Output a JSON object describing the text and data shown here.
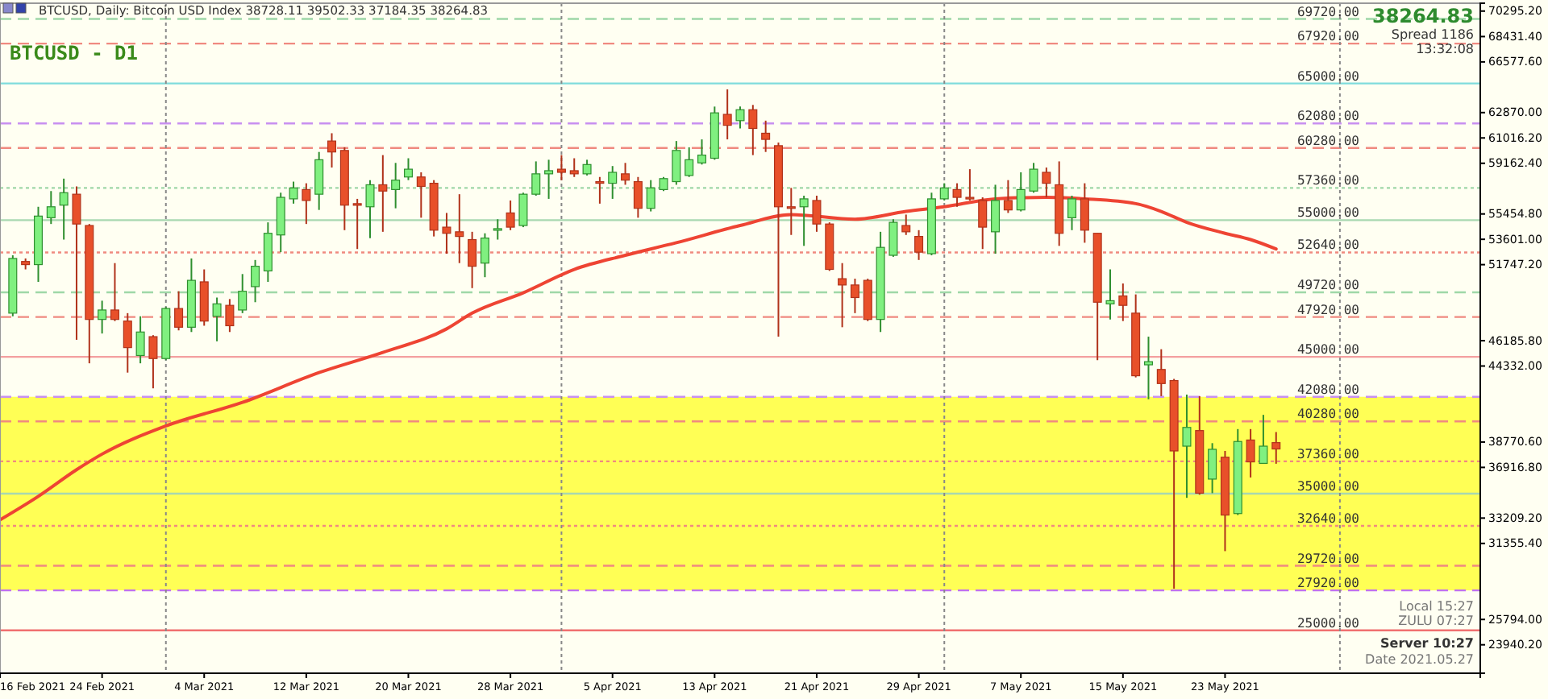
{
  "chart_data": {
    "type": "candlestick",
    "title": "BTCUSD, Daily:  Bitcoin USD Index  38728.11 39502.33 37184.35 38264.83",
    "subtitle": "BTCUSD - D1",
    "x": [
      "2021-02-17",
      "2021-02-18",
      "2021-02-19",
      "2021-02-20",
      "2021-02-21",
      "2021-02-22",
      "2021-02-23",
      "2021-02-24",
      "2021-02-25",
      "2021-02-26",
      "2021-02-27",
      "2021-02-28",
      "2021-03-01",
      "2021-03-02",
      "2021-03-03",
      "2021-03-04",
      "2021-03-05",
      "2021-03-06",
      "2021-03-07",
      "2021-03-08",
      "2021-03-09",
      "2021-03-10",
      "2021-03-11",
      "2021-03-12",
      "2021-03-13",
      "2021-03-14",
      "2021-03-15",
      "2021-03-16",
      "2021-03-17",
      "2021-03-18",
      "2021-03-19",
      "2021-03-20",
      "2021-03-21",
      "2021-03-22",
      "2021-03-23",
      "2021-03-24",
      "2021-03-25",
      "2021-03-26",
      "2021-03-27",
      "2021-03-28",
      "2021-03-29",
      "2021-03-30",
      "2021-03-31",
      "2021-04-01",
      "2021-04-02",
      "2021-04-03",
      "2021-04-04",
      "2021-04-05",
      "2021-04-06",
      "2021-04-07",
      "2021-04-08",
      "2021-04-09",
      "2021-04-10",
      "2021-04-11",
      "2021-04-12",
      "2021-04-13",
      "2021-04-14",
      "2021-04-15",
      "2021-04-16",
      "2021-04-17",
      "2021-04-18",
      "2021-04-19",
      "2021-04-20",
      "2021-04-21",
      "2021-04-22",
      "2021-04-23",
      "2021-04-24",
      "2021-04-25",
      "2021-04-26",
      "2021-04-27",
      "2021-04-28",
      "2021-04-29",
      "2021-04-30",
      "2021-05-01",
      "2021-05-02",
      "2021-05-03",
      "2021-05-04",
      "2021-05-05",
      "2021-05-06",
      "2021-05-07",
      "2021-05-08",
      "2021-05-09",
      "2021-05-10",
      "2021-05-11",
      "2021-05-12",
      "2021-05-13",
      "2021-05-14",
      "2021-05-15",
      "2021-05-16",
      "2021-05-17",
      "2021-05-18",
      "2021-05-19",
      "2021-05-20",
      "2021-05-21",
      "2021-05-22",
      "2021-05-23",
      "2021-05-24",
      "2021-05-25",
      "2021-05-26",
      "2021-05-27"
    ],
    "ohlc": [
      [
        48200,
        52430,
        47970,
        52200
      ],
      [
        51980,
        52200,
        51400,
        51750
      ],
      [
        51750,
        55980,
        50490,
        55300
      ],
      [
        55180,
        57130,
        54720,
        55980
      ],
      [
        56100,
        58040,
        53580,
        57010
      ],
      [
        56900,
        57470,
        46250,
        54720
      ],
      [
        54610,
        54720,
        44530,
        47740
      ],
      [
        47740,
        49110,
        46710,
        48430
      ],
      [
        48430,
        51860,
        47620,
        47740
      ],
      [
        47620,
        48200,
        43850,
        45680
      ],
      [
        45100,
        47970,
        44530,
        46820
      ],
      [
        46480,
        46590,
        42700,
        44880
      ],
      [
        44880,
        48650,
        44760,
        48540
      ],
      [
        48540,
        49800,
        46940,
        47170
      ],
      [
        47170,
        52200,
        46820,
        50600
      ],
      [
        50490,
        51400,
        47280,
        47620
      ],
      [
        47970,
        49340,
        46140,
        48880
      ],
      [
        48770,
        49230,
        46820,
        47280
      ],
      [
        48430,
        51060,
        48200,
        49800
      ],
      [
        50140,
        52090,
        49000,
        51630
      ],
      [
        51290,
        54840,
        50490,
        54040
      ],
      [
        53920,
        57010,
        52660,
        56670
      ],
      [
        56560,
        57820,
        56210,
        57360
      ],
      [
        57240,
        57700,
        54720,
        56440
      ],
      [
        56900,
        59990,
        55750,
        59420
      ],
      [
        60790,
        61360,
        58850,
        59990
      ],
      [
        60100,
        60330,
        54270,
        56100
      ],
      [
        56210,
        56560,
        52890,
        56100
      ],
      [
        55980,
        57930,
        53690,
        57590
      ],
      [
        57590,
        59760,
        54150,
        57130
      ],
      [
        57240,
        59190,
        55870,
        57930
      ],
      [
        58160,
        59530,
        57930,
        58730
      ],
      [
        58160,
        58500,
        55180,
        57470
      ],
      [
        57700,
        57930,
        53810,
        54270
      ],
      [
        54490,
        55530,
        52550,
        54040
      ],
      [
        54150,
        56900,
        51860,
        53810
      ],
      [
        53580,
        54150,
        50030,
        51630
      ],
      [
        51860,
        54040,
        50830,
        53690
      ],
      [
        54270,
        55070,
        53580,
        54380
      ],
      [
        55530,
        56440,
        54270,
        54490
      ],
      [
        54610,
        57010,
        54490,
        56900
      ],
      [
        56900,
        59300,
        56790,
        58390
      ],
      [
        58390,
        59420,
        56560,
        58620
      ],
      [
        58730,
        59760,
        57930,
        58500
      ],
      [
        58620,
        59530,
        58160,
        58390
      ],
      [
        58390,
        59420,
        58270,
        59070
      ],
      [
        57820,
        58160,
        56210,
        57700
      ],
      [
        57700,
        58960,
        56560,
        58500
      ],
      [
        58390,
        59190,
        57590,
        57930
      ],
      [
        57820,
        58160,
        55180,
        55870
      ],
      [
        55870,
        57930,
        55640,
        57360
      ],
      [
        57240,
        58160,
        57130,
        58040
      ],
      [
        57820,
        60790,
        57590,
        60100
      ],
      [
        58270,
        60330,
        58160,
        59420
      ],
      [
        59190,
        60910,
        59070,
        59760
      ],
      [
        59530,
        63310,
        59420,
        62850
      ],
      [
        62740,
        64570,
        60910,
        61940
      ],
      [
        62280,
        63310,
        61710,
        63080
      ],
      [
        63080,
        63430,
        59760,
        61710
      ],
      [
        61360,
        62280,
        59990,
        60910
      ],
      [
        60450,
        60680,
        46480,
        55980
      ],
      [
        55980,
        57360,
        53920,
        55870
      ],
      [
        55980,
        56790,
        53120,
        56560
      ],
      [
        56440,
        56790,
        54150,
        54720
      ],
      [
        54720,
        54840,
        51290,
        51400
      ],
      [
        50720,
        51860,
        47170,
        50260
      ],
      [
        50260,
        50720,
        48200,
        49340
      ],
      [
        50600,
        50720,
        47620,
        47740
      ],
      [
        47740,
        54150,
        46820,
        53010
      ],
      [
        52430,
        55070,
        52320,
        54840
      ],
      [
        54610,
        55410,
        53920,
        54150
      ],
      [
        53810,
        54270,
        52090,
        52660
      ],
      [
        52550,
        57010,
        52430,
        56560
      ],
      [
        56560,
        57700,
        56440,
        57360
      ],
      [
        57240,
        57700,
        55980,
        56670
      ],
      [
        56670,
        58730,
        56440,
        56560
      ],
      [
        56440,
        56670,
        52890,
        54490
      ],
      [
        54150,
        57590,
        52550,
        56440
      ],
      [
        56440,
        57930,
        55530,
        55750
      ],
      [
        55750,
        58500,
        55640,
        57240
      ],
      [
        57130,
        59190,
        57010,
        58730
      ],
      [
        58500,
        58850,
        56670,
        57700
      ],
      [
        57590,
        59300,
        53120,
        54040
      ],
      [
        55180,
        56790,
        54270,
        56560
      ],
      [
        56560,
        57700,
        53350,
        54270
      ],
      [
        54040,
        54040,
        44760,
        49000
      ],
      [
        48880,
        51400,
        47740,
        49110
      ],
      [
        49460,
        50370,
        47620,
        48770
      ],
      [
        48200,
        49570,
        43500,
        43620
      ],
      [
        44420,
        46480,
        41900,
        44650
      ],
      [
        44080,
        45560,
        42130,
        43050
      ],
      [
        43270,
        43390,
        28050,
        38120
      ],
      [
        38470,
        42240,
        34690,
        39840
      ],
      [
        39610,
        42130,
        34920,
        35030
      ],
      [
        36060,
        38690,
        35030,
        38240
      ],
      [
        37660,
        38120,
        30790,
        33430
      ],
      [
        33540,
        39720,
        33430,
        38810
      ],
      [
        38920,
        39720,
        36180,
        37320
      ],
      [
        37210,
        40760,
        37210,
        38470
      ],
      [
        38728.11,
        39502.33,
        37184.35,
        38264.83
      ]
    ],
    "series": [
      {
        "type": "line",
        "color": "#ee4433",
        "x": [
          "2021-02-16",
          "2021-02-19",
          "2021-02-22",
          "2021-02-24",
          "2021-03-01",
          "2021-03-07",
          "2021-03-13",
          "2021-03-18",
          "2021-03-23",
          "2021-03-25",
          "2021-03-29",
          "2021-04-02",
          "2021-04-06",
          "2021-04-10",
          "2021-04-15",
          "2021-04-19",
          "2021-04-24",
          "2021-04-28",
          "2021-05-01",
          "2021-05-05",
          "2021-05-09",
          "2021-05-12",
          "2021-05-16",
          "2021-05-18",
          "2021-05-20",
          "2021-05-23",
          "2021-05-25",
          "2021-05-27"
        ],
        "values": [
          33080,
          34800,
          36750,
          37890,
          39950,
          41670,
          43850,
          45330,
          47050,
          48200,
          49690,
          51400,
          52430,
          53350,
          54610,
          55410,
          55070,
          55640,
          55980,
          56560,
          56670,
          56560,
          56210,
          55640,
          54840,
          54040,
          53580,
          52890
        ]
      }
    ],
    "xlim": [
      "2021-02-16",
      "2021-06-12"
    ],
    "xticks": [
      {
        "value": "2021-02-16",
        "label": "16 Feb 2021"
      },
      {
        "value": "2021-02-24",
        "label": "24 Feb 2021"
      },
      {
        "value": "2021-03-04",
        "label": "4 Mar 2021"
      },
      {
        "value": "2021-03-12",
        "label": "12 Mar 2021"
      },
      {
        "value": "2021-03-20",
        "label": "20 Mar 2021"
      },
      {
        "value": "2021-03-28",
        "label": "28 Mar 2021"
      },
      {
        "value": "2021-04-05",
        "label": "5 Apr 2021"
      },
      {
        "value": "2021-04-13",
        "label": "13 Apr 2021"
      },
      {
        "value": "2021-04-21",
        "label": "21 Apr 2021"
      },
      {
        "value": "2021-04-29",
        "label": "29 Apr 2021"
      },
      {
        "value": "2021-05-07",
        "label": "7 May 2021"
      },
      {
        "value": "2021-05-15",
        "label": "15 May 2021"
      },
      {
        "value": "2021-05-23",
        "label": "23 May 2021"
      }
    ],
    "ylim": [
      21860,
      70870
    ],
    "yticks": [
      {
        "value": 70295.2,
        "label": "70295.20"
      },
      {
        "value": 68431.4,
        "label": "68431.40"
      },
      {
        "value": 66577.6,
        "label": "66577.60"
      },
      {
        "value": 62870,
        "label": "62870.00"
      },
      {
        "value": 61016.2,
        "label": "61016.20"
      },
      {
        "value": 59162.4,
        "label": "59162.40"
      },
      {
        "value": 55454.8,
        "label": "55454.80"
      },
      {
        "value": 53601,
        "label": "53601.00"
      },
      {
        "value": 51747.2,
        "label": "51747.20"
      },
      {
        "value": 46185.8,
        "label": "46185.80"
      },
      {
        "value": 44332,
        "label": "44332.00"
      },
      {
        "value": 38770.6,
        "label": "38770.60"
      },
      {
        "value": 36916.8,
        "label": "36916.80"
      },
      {
        "value": 33209.2,
        "label": "33209.20"
      },
      {
        "value": 31355.4,
        "label": "31355.40"
      },
      {
        "value": 25794,
        "label": "25794.00"
      },
      {
        "value": 23940.2,
        "label": "23940.20"
      }
    ],
    "bands": [
      {
        "axis": "y",
        "from": 27920,
        "to": 42080,
        "color": "#ffff55"
      }
    ],
    "ref_lines": [
      {
        "axis": "y",
        "value": 69720,
        "label": "69720.00",
        "color": "#9fd8a8",
        "line_style": "dashed"
      },
      {
        "axis": "y",
        "value": 67920,
        "label": "67920.00",
        "color": "#f08a80",
        "line_style": "dashed"
      },
      {
        "axis": "y",
        "value": 65000,
        "label": "65000.00",
        "color": "#7fdcdc",
        "line_style": "solid"
      },
      {
        "axis": "y",
        "value": 62080,
        "label": "62080.00",
        "color": "#c890f0",
        "line_style": "dashed"
      },
      {
        "axis": "y",
        "value": 60280,
        "label": "60280.00",
        "color": "#f08a80",
        "line_style": "dashed"
      },
      {
        "axis": "y",
        "value": 57360,
        "label": "57360.00",
        "color": "#9fd8a8",
        "line_style": "dotted"
      },
      {
        "axis": "y",
        "value": 55000,
        "label": "55000.00",
        "color": "#a8d8b0",
        "line_style": "solid"
      },
      {
        "axis": "y",
        "value": 52640,
        "label": "52640.00",
        "color": "#f08a80",
        "line_style": "dotted"
      },
      {
        "axis": "y",
        "value": 49720,
        "label": "49720.00",
        "color": "#9fd8a8",
        "line_style": "dashed"
      },
      {
        "axis": "y",
        "value": 47920,
        "label": "47920.00",
        "color": "#f08a80",
        "line_style": "dashed"
      },
      {
        "axis": "y",
        "value": 45000,
        "label": "45000.00",
        "color": "#f4a0a0",
        "line_style": "solid"
      },
      {
        "axis": "y",
        "value": 42080,
        "label": "42080.00",
        "color": "#c890f0",
        "line_style": "dashed"
      },
      {
        "axis": "y",
        "value": 40280,
        "label": "40280.00",
        "color": "#f08a80",
        "line_style": "dashed"
      },
      {
        "axis": "y",
        "value": 37360,
        "label": "37360.00",
        "color": "#f08a80",
        "line_style": "dotted"
      },
      {
        "axis": "y",
        "value": 35000,
        "label": "35000.00",
        "color": "#a8d8b0",
        "line_style": "solid"
      },
      {
        "axis": "y",
        "value": 32640,
        "label": "32640.00",
        "color": "#f08a80",
        "line_style": "dotted"
      },
      {
        "axis": "y",
        "value": 29720,
        "label": "29720.00",
        "color": "#f08a80",
        "line_style": "dashed"
      },
      {
        "axis": "y",
        "value": 27920,
        "label": "27920.00",
        "color": "#c070f0",
        "line_style": "dashed"
      },
      {
        "axis": "y",
        "value": 25000,
        "label": "25000.00",
        "color": "#f07070",
        "line_style": "solid"
      },
      {
        "axis": "x",
        "value": "2021-03-01",
        "label": null,
        "color": "#888888",
        "line_style": "dotted"
      },
      {
        "axis": "x",
        "value": "2021-04-01",
        "label": null,
        "color": "#888888",
        "line_style": "dotted"
      },
      {
        "axis": "x",
        "value": "2021-05-01",
        "label": null,
        "color": "#888888",
        "line_style": "dotted"
      },
      {
        "axis": "x",
        "value": "2021-06-01",
        "label": null,
        "color": "#888888",
        "line_style": "dotted"
      }
    ],
    "annotations": [
      "38264.83",
      "Spread 1186",
      "13:32:08",
      "Local 15:27",
      "ZULU 07:27",
      "Server 10:27",
      "Date 2021.05.27"
    ],
    "grid": false,
    "marker": "none",
    "line_style": "solid"
  }
}
